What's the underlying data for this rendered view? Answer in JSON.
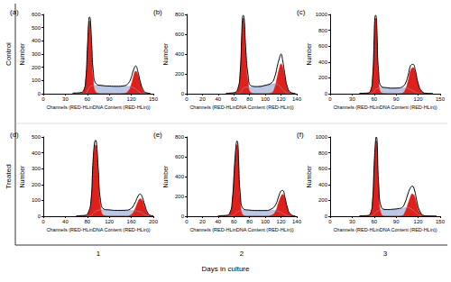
{
  "row_labels": [
    "Control",
    "Treated"
  ],
  "column_labels": [
    "1",
    "2",
    "3"
  ],
  "column_axis_label": "Days in culture",
  "chart_data": [
    {
      "type": "line",
      "title": "(a)",
      "xlabel": "Channels (RED-HLinDNA Content (RED-HLin))",
      "ylabel": "Number",
      "xlim": [
        0,
        150
      ],
      "xticks": [
        0,
        30,
        60,
        90,
        120,
        150
      ],
      "ylim": [
        0,
        600
      ],
      "yticks": [
        0,
        100,
        200,
        300,
        400,
        500,
        600
      ],
      "x": [
        40,
        50,
        55,
        58,
        60,
        62,
        63,
        64,
        66,
        68,
        72,
        80,
        90,
        100,
        110,
        116,
        120,
        123,
        126,
        129,
        132,
        136,
        140,
        146
      ],
      "series": [
        {
          "type": "area",
          "color": "#8fa3d1",
          "values": [
            0,
            0,
            0,
            0,
            20,
            40,
            50,
            55,
            60,
            60,
            60,
            58,
            55,
            55,
            55,
            55,
            52,
            45,
            35,
            20,
            8,
            0,
            0,
            0
          ]
        },
        {
          "type": "area",
          "color": "#e0201b",
          "values": [
            0,
            2,
            20,
            110,
            300,
            510,
            550,
            510,
            300,
            110,
            10,
            0,
            0,
            0,
            0,
            0,
            0,
            0,
            0,
            0,
            0,
            0,
            0,
            0
          ]
        },
        {
          "type": "area",
          "color": "#e0201b",
          "values": [
            0,
            0,
            0,
            0,
            0,
            0,
            0,
            0,
            0,
            0,
            0,
            0,
            0,
            0,
            2,
            20,
            70,
            130,
            170,
            140,
            80,
            20,
            3,
            0
          ]
        },
        {
          "type": "line",
          "color": "#000000",
          "values": [
            5,
            8,
            25,
            115,
            330,
            555,
            580,
            570,
            370,
            180,
            75,
            62,
            58,
            56,
            60,
            80,
            125,
            180,
            210,
            165,
            95,
            30,
            8,
            3
          ]
        }
      ]
    },
    {
      "type": "line",
      "title": "(b)",
      "xlabel": "Channels (RED-HLinDNA Content (RED-HLin))",
      "ylabel": "Number",
      "xlim": [
        0,
        140
      ],
      "xticks": [
        0,
        20,
        40,
        60,
        80,
        100,
        120,
        140
      ],
      "ylim": [
        0,
        800
      ],
      "yticks": [
        0,
        200,
        400,
        600,
        800
      ],
      "x": [
        50,
        60,
        65,
        68,
        70,
        71,
        72,
        73,
        75,
        78,
        82,
        90,
        100,
        108,
        112,
        115,
        118,
        120,
        122,
        125,
        128,
        132,
        138
      ],
      "series": [
        {
          "type": "area",
          "color": "#8fa3d1",
          "values": [
            0,
            0,
            0,
            10,
            30,
            45,
            55,
            60,
            65,
            65,
            65,
            70,
            80,
            95,
            100,
            95,
            80,
            60,
            40,
            20,
            5,
            0,
            0
          ]
        },
        {
          "type": "area",
          "color": "#e0201b",
          "values": [
            0,
            5,
            40,
            200,
            550,
            720,
            760,
            700,
            400,
            120,
            10,
            0,
            0,
            0,
            0,
            0,
            0,
            0,
            0,
            0,
            0,
            0,
            0
          ]
        },
        {
          "type": "area",
          "color": "#e0201b",
          "values": [
            0,
            0,
            0,
            0,
            0,
            0,
            0,
            0,
            0,
            0,
            0,
            0,
            0,
            10,
            60,
            160,
            260,
            300,
            270,
            160,
            60,
            10,
            0
          ]
        },
        {
          "type": "line",
          "color": "#000000",
          "values": [
            5,
            10,
            50,
            215,
            590,
            770,
            790,
            770,
            470,
            190,
            80,
            72,
            85,
            110,
            170,
            270,
            360,
            400,
            340,
            190,
            70,
            15,
            3
          ]
        }
      ]
    },
    {
      "type": "line",
      "title": "(c)",
      "xlabel": "Channels (RED-HLinDNA Content (RED-HLin))",
      "ylabel": "Number",
      "xlim": [
        0,
        150
      ],
      "xticks": [
        0,
        30,
        60,
        90,
        120,
        150
      ],
      "ylim": [
        0,
        1000
      ],
      "yticks": [
        0,
        200,
        400,
        600,
        800,
        1000
      ],
      "x": [
        40,
        50,
        55,
        58,
        60,
        61,
        62,
        63,
        64,
        66,
        70,
        78,
        85,
        92,
        98,
        102,
        106,
        110,
        113,
        116,
        120,
        125,
        132,
        140
      ],
      "series": [
        {
          "type": "area",
          "color": "#8fa3d1",
          "values": [
            0,
            0,
            0,
            10,
            30,
            45,
            55,
            60,
            65,
            70,
            75,
            70,
            65,
            65,
            70,
            72,
            65,
            50,
            35,
            20,
            5,
            0,
            0,
            0
          ]
        },
        {
          "type": "area",
          "color": "#e0201b",
          "values": [
            0,
            3,
            30,
            200,
            650,
            900,
            950,
            880,
            650,
            200,
            10,
            0,
            0,
            0,
            0,
            0,
            0,
            0,
            0,
            0,
            0,
            0,
            0,
            0
          ]
        },
        {
          "type": "area",
          "color": "#e0201b",
          "values": [
            0,
            0,
            0,
            0,
            0,
            0,
            0,
            0,
            0,
            0,
            0,
            0,
            0,
            0,
            5,
            40,
            150,
            300,
            330,
            270,
            120,
            25,
            2,
            0
          ]
        },
        {
          "type": "line",
          "color": "#000000",
          "values": [
            5,
            8,
            35,
            215,
            690,
            960,
            990,
            960,
            730,
            280,
            90,
            75,
            70,
            72,
            85,
            120,
            220,
            360,
            370,
            300,
            130,
            30,
            5,
            2
          ]
        }
      ]
    },
    {
      "type": "line",
      "title": "(d)",
      "xlabel": "Channels (RED-HLinDNA Content (RED-HLin))",
      "ylabel": "Number",
      "xlim": [
        0,
        200
      ],
      "xticks": [
        0,
        40,
        80,
        120,
        160,
        200
      ],
      "ylim": [
        0,
        500
      ],
      "yticks": [
        0,
        100,
        200,
        300,
        400,
        500
      ],
      "x": [
        60,
        75,
        82,
        87,
        90,
        93,
        95,
        97,
        100,
        104,
        110,
        120,
        135,
        150,
        160,
        166,
        172,
        176,
        180,
        184,
        190,
        196,
        200
      ],
      "series": [
        {
          "type": "area",
          "color": "#8fa3d1",
          "values": [
            0,
            0,
            0,
            5,
            15,
            25,
            30,
            35,
            38,
            40,
            40,
            38,
            35,
            35,
            35,
            35,
            32,
            28,
            20,
            10,
            3,
            0,
            0
          ]
        },
        {
          "type": "area",
          "color": "#e0201b",
          "values": [
            0,
            2,
            20,
            100,
            300,
            430,
            450,
            410,
            250,
            60,
            5,
            0,
            0,
            0,
            0,
            0,
            0,
            0,
            0,
            0,
            0,
            0,
            0
          ]
        },
        {
          "type": "area",
          "color": "#e0201b",
          "values": [
            0,
            0,
            0,
            0,
            0,
            0,
            0,
            0,
            0,
            0,
            0,
            0,
            0,
            0,
            10,
            40,
            90,
            110,
            100,
            60,
            15,
            2,
            0
          ]
        },
        {
          "type": "line",
          "color": "#000000",
          "values": [
            3,
            5,
            25,
            110,
            320,
            460,
            480,
            450,
            290,
            100,
            45,
            40,
            37,
            38,
            50,
            80,
            125,
            140,
            120,
            75,
            20,
            4,
            2
          ]
        }
      ]
    },
    {
      "type": "line",
      "title": "(e)",
      "xlabel": "Channels (RED-HLinDNA Content (RED-HLin))",
      "ylabel": "Number",
      "xlim": [
        0,
        140
      ],
      "xticks": [
        0,
        20,
        40,
        60,
        80,
        100,
        120,
        140
      ],
      "ylim": [
        0,
        800
      ],
      "yticks": [
        0,
        200,
        400,
        600,
        800
      ],
      "x": [
        40,
        50,
        55,
        58,
        61,
        63,
        64,
        65,
        66,
        68,
        72,
        80,
        90,
        100,
        108,
        113,
        117,
        120,
        122,
        125,
        128,
        132,
        138
      ],
      "series": [
        {
          "type": "area",
          "color": "#8fa3d1",
          "values": [
            0,
            0,
            0,
            5,
            20,
            35,
            40,
            45,
            50,
            55,
            60,
            58,
            55,
            55,
            58,
            55,
            50,
            40,
            30,
            15,
            5,
            0,
            0
          ]
        },
        {
          "type": "area",
          "color": "#e0201b",
          "values": [
            0,
            3,
            30,
            150,
            500,
            690,
            720,
            690,
            500,
            180,
            10,
            0,
            0,
            0,
            0,
            0,
            0,
            0,
            0,
            0,
            0,
            0,
            0
          ]
        },
        {
          "type": "area",
          "color": "#e0201b",
          "values": [
            0,
            0,
            0,
            0,
            0,
            0,
            0,
            0,
            0,
            0,
            0,
            0,
            0,
            0,
            10,
            50,
            140,
            200,
            220,
            170,
            80,
            15,
            0
          ]
        },
        {
          "type": "line",
          "color": "#000000",
          "values": [
            5,
            8,
            35,
            160,
            530,
            730,
            760,
            740,
            560,
            240,
            75,
            62,
            58,
            58,
            75,
            115,
            200,
            255,
            260,
            190,
            90,
            20,
            3
          ]
        }
      ]
    },
    {
      "type": "line",
      "title": "(f)",
      "xlabel": "Channels (RED-HLinDNA Content (RED-HLin))",
      "ylabel": "Number",
      "xlim": [
        0,
        150
      ],
      "xticks": [
        0,
        30,
        60,
        90,
        120,
        150
      ],
      "ylim": [
        0,
        1000
      ],
      "yticks": [
        0,
        200,
        400,
        600,
        800,
        1000
      ],
      "x": [
        40,
        50,
        55,
        58,
        60,
        62,
        63,
        64,
        66,
        70,
        78,
        85,
        92,
        98,
        102,
        106,
        109,
        112,
        115,
        118,
        122,
        128,
        135,
        145
      ],
      "series": [
        {
          "type": "area",
          "color": "#8fa3d1",
          "values": [
            0,
            0,
            0,
            10,
            25,
            45,
            55,
            60,
            70,
            80,
            80,
            80,
            85,
            95,
            105,
            110,
            100,
            85,
            60,
            35,
            10,
            0,
            0,
            0
          ]
        },
        {
          "type": "area",
          "color": "#e0201b",
          "values": [
            0,
            3,
            30,
            200,
            600,
            900,
            950,
            880,
            350,
            20,
            0,
            0,
            0,
            0,
            0,
            0,
            0,
            0,
            0,
            0,
            0,
            0,
            0,
            0
          ]
        },
        {
          "type": "area",
          "color": "#e0201b",
          "values": [
            0,
            0,
            0,
            0,
            0,
            0,
            0,
            0,
            0,
            0,
            0,
            0,
            0,
            5,
            50,
            150,
            230,
            280,
            250,
            150,
            50,
            5,
            0,
            0
          ]
        },
        {
          "type": "line",
          "color": "#000000",
          "values": [
            5,
            8,
            35,
            215,
            640,
            960,
            1000,
            950,
            430,
            110,
            85,
            88,
            95,
            110,
            170,
            280,
            350,
            380,
            330,
            200,
            70,
            8,
            3,
            2
          ]
        }
      ]
    }
  ]
}
